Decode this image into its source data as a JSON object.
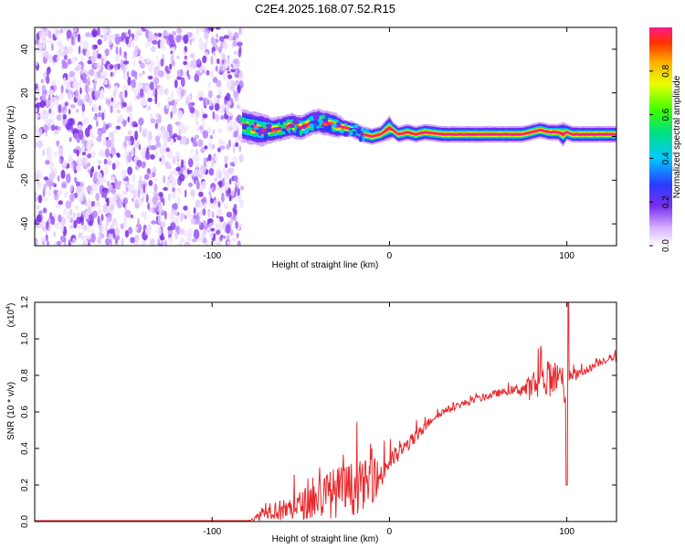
{
  "figure": {
    "title": "C2E4.2025.168.07.52.R15"
  },
  "chart_data": [
    {
      "type": "heatmap",
      "xlabel": "Height of straight line (km)",
      "ylabel": "Frequency (Hz)",
      "xlim": [
        -200,
        128
      ],
      "ylim": [
        -50,
        50
      ],
      "x_ticks": [
        "-100",
        "0",
        "100"
      ],
      "y_ticks": [
        "-40",
        "-20",
        "0",
        "20",
        "40"
      ],
      "colorbar": {
        "label": "Normalized spectral amplitude",
        "range": [
          0,
          1
        ],
        "ticks": [
          "0.0",
          "0.2",
          "0.4",
          "0.6",
          "0.8"
        ]
      },
      "noise_region_x": [
        -200,
        -83
      ],
      "ridge": {
        "x": [
          -83,
          -78,
          -72,
          -66,
          -60,
          -55,
          -50,
          -45,
          -40,
          -35,
          -30,
          -25,
          -20,
          -15,
          -10,
          -5,
          0,
          2,
          5,
          10,
          15,
          20,
          30,
          40,
          50,
          60,
          70,
          75,
          80,
          85,
          90,
          95,
          98,
          100,
          103,
          110,
          128
        ],
        "freq": [
          5,
          4,
          3,
          3,
          4,
          5,
          4,
          6,
          7,
          6,
          5,
          4,
          3,
          1,
          0,
          1,
          4,
          3,
          1,
          2,
          1,
          2,
          1,
          1,
          1,
          1,
          1,
          1,
          2,
          3,
          2,
          2,
          1,
          2,
          1,
          1,
          1
        ],
        "width": [
          4,
          4,
          4,
          3,
          3,
          3,
          3,
          3,
          3,
          3,
          3,
          2,
          2,
          2,
          2,
          2,
          3,
          2,
          2,
          2,
          2,
          2,
          2,
          2,
          2,
          2,
          2,
          2,
          2,
          2,
          2,
          2,
          3,
          2,
          2,
          2,
          2
        ],
        "peak_amplitude": [
          0.5,
          0.5,
          0.5,
          0.55,
          0.6,
          0.6,
          0.6,
          0.65,
          0.7,
          0.7,
          0.75,
          0.8,
          0.85,
          0.9,
          0.95,
          0.95,
          0.9,
          0.95,
          0.95,
          0.95,
          0.95,
          0.95,
          0.95,
          0.95,
          0.95,
          0.95,
          0.95,
          0.95,
          0.9,
          0.9,
          0.9,
          0.9,
          0.85,
          0.9,
          0.95,
          0.95,
          0.95
        ]
      }
    },
    {
      "type": "line",
      "xlabel": "Height of straight line (km)",
      "ylabel": "SNR (10 * v/v)",
      "y_multiplier": "(x10",
      "y_multiplier_exp": "4",
      "y_multiplier_close": ")",
      "xlim": [
        -200,
        128
      ],
      "ylim": [
        0,
        1.2
      ],
      "x_ticks": [
        "-100",
        "0",
        "100"
      ],
      "y_ticks": [
        "0.0",
        "0.2",
        "0.4",
        "0.6",
        "0.8",
        "1.0",
        "1.2"
      ],
      "series": [
        {
          "color": "#e8292d",
          "x": [
            -200,
            -150,
            -100,
            -80,
            -75,
            -70,
            -60,
            -50,
            -40,
            -30,
            -20,
            -10,
            -5,
            0,
            5,
            10,
            15,
            20,
            25,
            30,
            40,
            50,
            60,
            70,
            80,
            85,
            90,
            95,
            98,
            100,
            102,
            105,
            110,
            115,
            120,
            128
          ],
          "y": [
            0.005,
            0.005,
            0.005,
            0.005,
            0.02,
            0.07,
            0.06,
            0.09,
            0.13,
            0.16,
            0.18,
            0.22,
            0.25,
            0.33,
            0.37,
            0.42,
            0.46,
            0.52,
            0.57,
            0.6,
            0.64,
            0.67,
            0.7,
            0.72,
            0.73,
            0.76,
            0.78,
            0.8,
            0.8,
            0.72,
            0.82,
            0.8,
            0.82,
            0.85,
            0.88,
            0.9
          ],
          "noise": [
            0,
            0,
            0,
            0,
            0.02,
            0.05,
            0.06,
            0.08,
            0.12,
            0.14,
            0.15,
            0.12,
            0.09,
            0.06,
            0.05,
            0.04,
            0.04,
            0.03,
            0.02,
            0.02,
            0.02,
            0.02,
            0.02,
            0.02,
            0.07,
            0.1,
            0.1,
            0.08,
            0.06,
            0.4,
            0.05,
            0.03,
            0.02,
            0.02,
            0.02,
            0.02
          ]
        }
      ]
    }
  ]
}
